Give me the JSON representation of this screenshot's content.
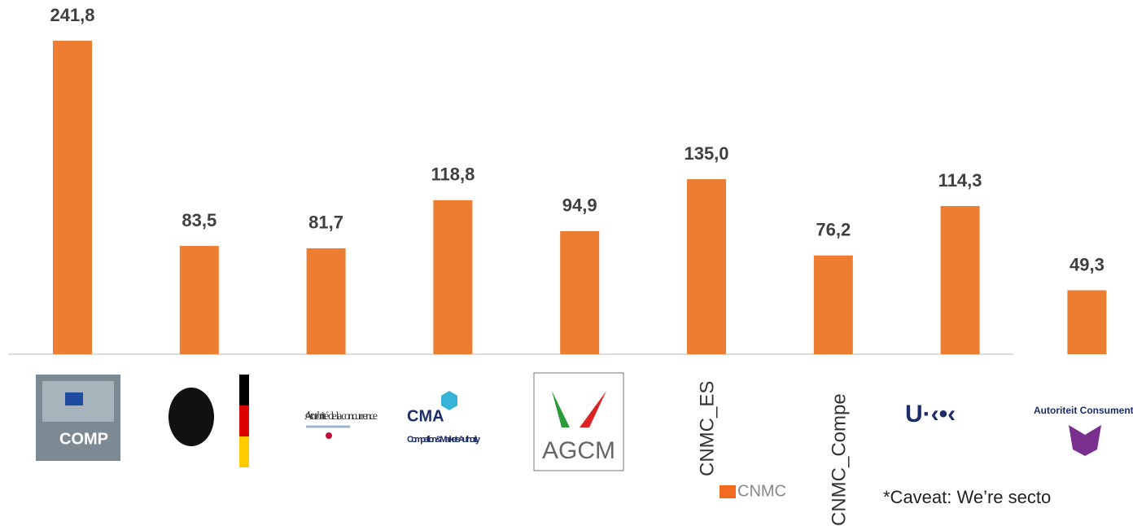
{
  "chart_data": {
    "type": "bar",
    "categories": [
      "COMP",
      null,
      "Autorité de la concurrence",
      "CMA",
      "AGCM",
      "CNMC_ES",
      "CNMC_Compe",
      null,
      "Autoriteit Consument & Markt"
    ],
    "values": [
      241.8,
      83.5,
      81.7,
      118.8,
      94.9,
      135.0,
      76.2,
      114.3,
      49.3
    ],
    "value_labels": [
      "241,8",
      "83,5",
      "81,7",
      "118,8",
      "94,9",
      "135,0",
      "76,2",
      "114,3",
      "49,3"
    ],
    "color": "#ED7D31",
    "logo_texts": {
      "cma_sub": "Competition & Markets Authority",
      "cnmc": "CNMC"
    },
    "annotation": "*Caveat: We’re secto"
  }
}
